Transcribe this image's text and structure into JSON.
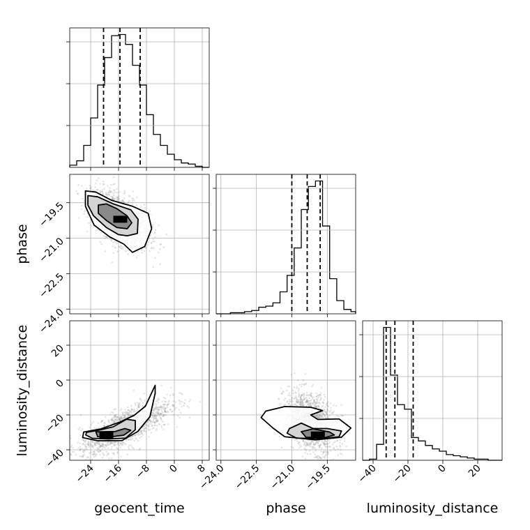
{
  "chart_data": {
    "type": "corner",
    "parameters": [
      "geocent_time",
      "phase",
      "luminosity_distance"
    ],
    "axis_labels": {
      "x": [
        "geocent_time",
        "phase",
        "luminosity_distance"
      ],
      "y": [
        "phase",
        "luminosity_distance"
      ]
    },
    "ranges": {
      "geocent_time": [
        -30,
        10
      ],
      "phase": [
        -24.2,
        -18.3
      ],
      "luminosity_distance": [
        -46,
        34
      ]
    },
    "ticks": {
      "geocent_time": [
        -24,
        -16,
        -8,
        0,
        8
      ],
      "phase": [
        -24.0,
        -22.5,
        -21.0,
        -19.5
      ],
      "luminosity_distance": [
        -40,
        -20,
        0,
        20
      ]
    },
    "tick_labels": {
      "geocent_time": [
        "−24",
        "−16",
        "−8",
        "0",
        "8"
      ],
      "phase": [
        "−24.0",
        "−22.5",
        "−21.0",
        "−19.5"
      ],
      "luminosity_distance": [
        "−40",
        "−20",
        "0",
        "20"
      ]
    },
    "quantiles": {
      "geocent_time": [
        -20.3,
        -15.6,
        -9.8
      ],
      "phase": [
        -21.0,
        -20.35,
        -19.8
      ],
      "luminosity_distance": [
        -32.5,
        -27.5,
        -17.0
      ]
    },
    "histograms": {
      "geocent_time": {
        "edges": [
          -30,
          -28,
          -26,
          -24,
          -22,
          -20,
          -18,
          -16,
          -14,
          -12,
          -10,
          -8,
          -6,
          -4,
          -2,
          0,
          2,
          4,
          6,
          8,
          10
        ],
        "counts": [
          2,
          6,
          20,
          45,
          75,
          100,
          120,
          121,
          112,
          93,
          75,
          48,
          30,
          20,
          12,
          7,
          4,
          3,
          1,
          0
        ]
      },
      "phase": {
        "edges": [
          -24.2,
          -23.9,
          -23.6,
          -23.3,
          -23.0,
          -22.7,
          -22.4,
          -22.1,
          -21.8,
          -21.5,
          -21.2,
          -20.9,
          -20.6,
          -20.3,
          -20.0,
          -19.7,
          -19.4,
          -19.1,
          -18.8,
          -18.5,
          -18.3
        ],
        "counts": [
          0,
          0,
          1,
          1,
          2,
          3,
          6,
          7,
          10,
          20,
          35,
          60,
          95,
          116,
          121,
          80,
          32,
          12,
          4,
          2
        ]
      },
      "luminosity_distance": {
        "edges": [
          -46,
          -42,
          -38,
          -34,
          -30,
          -26,
          -22,
          -18,
          -14,
          -10,
          -6,
          -2,
          2,
          6,
          10,
          14,
          18,
          22,
          26,
          30,
          34
        ],
        "counts": [
          0,
          1,
          14,
          117,
          75,
          49,
          45,
          20,
          17,
          13,
          10,
          8,
          5,
          4,
          3,
          2,
          1,
          1,
          0,
          0
        ]
      }
    },
    "panels_2d": [
      {
        "x": "geocent_time",
        "y": "phase",
        "center": [
          -15.5,
          -20.2
        ],
        "sd": [
          4.2,
          0.6
        ],
        "rho": -0.55,
        "mode": [
          -15.5,
          -20.2
        ],
        "contours": [
          [
            [
              -21.8,
              -19.6
            ],
            [
              -19.5,
              -19.55
            ],
            [
              -16.5,
              -19.75
            ],
            [
              -13.6,
              -20.05
            ],
            [
              -12.2,
              -20.35
            ],
            [
              -13.5,
              -20.6
            ],
            [
              -16.5,
              -20.55
            ],
            [
              -19.5,
              -20.25
            ],
            [
              -21.8,
              -19.95
            ]
          ],
          [
            [
              -24.8,
              -19.2
            ],
            [
              -22.0,
              -19.25
            ],
            [
              -17.5,
              -19.55
            ],
            [
              -12.5,
              -19.8
            ],
            [
              -10.4,
              -20.2
            ],
            [
              -10.6,
              -20.8
            ],
            [
              -13.5,
              -20.9
            ],
            [
              -16.0,
              -20.85
            ],
            [
              -19.5,
              -20.55
            ],
            [
              -23.2,
              -20.05
            ],
            [
              -24.8,
              -19.6
            ]
          ],
          [
            [
              -25.5,
              -19.0
            ],
            [
              -22.5,
              -19.05
            ],
            [
              -18.0,
              -19.4
            ],
            [
              -12.0,
              -19.65
            ],
            [
              -7.5,
              -19.95
            ],
            [
              -6.5,
              -20.6
            ],
            [
              -8.5,
              -21.35
            ],
            [
              -12.0,
              -21.6
            ],
            [
              -14.5,
              -21.25
            ],
            [
              -18.5,
              -20.95
            ],
            [
              -23.0,
              -20.45
            ],
            [
              -25.5,
              -19.65
            ]
          ]
        ]
      },
      {
        "x": "geocent_time",
        "y": "luminosity_distance",
        "center": [
          -14.0,
          -27.0
        ],
        "sd": [
          6.5,
          8.0
        ],
        "rho": 0.75,
        "mode": [
          -19.5,
          -31.5
        ],
        "contours": [
          [
            [
              -22.5,
              -29.7
            ],
            [
              -17.0,
              -29.5
            ],
            [
              -14.2,
              -27.8
            ],
            [
              -12.5,
              -28.8
            ],
            [
              -14.5,
              -31.6
            ],
            [
              -18.5,
              -32.6
            ],
            [
              -22.0,
              -32.5
            ]
          ],
          [
            [
              -25.2,
              -30.0
            ],
            [
              -21.5,
              -28.7
            ],
            [
              -17.5,
              -26.8
            ],
            [
              -13.7,
              -22.5
            ],
            [
              -11.2,
              -23.2
            ],
            [
              -11.2,
              -28.5
            ],
            [
              -14.0,
              -33.3
            ],
            [
              -19.0,
              -33.8
            ],
            [
              -23.5,
              -33.4
            ],
            [
              -25.4,
              -31.5
            ]
          ],
          [
            [
              -26.0,
              -29.8
            ],
            [
              -21.0,
              -28.0
            ],
            [
              -15.5,
              -24.0
            ],
            [
              -11.5,
              -20.2
            ],
            [
              -8.3,
              -15.0
            ],
            [
              -5.5,
              -3.0
            ],
            [
              -5.5,
              -7.5
            ],
            [
              -7.0,
              -21.0
            ],
            [
              -10.5,
              -29.5
            ],
            [
              -15.0,
              -34.7
            ],
            [
              -22.0,
              -34.8
            ],
            [
              -26.3,
              -33.0
            ]
          ]
        ]
      },
      {
        "x": "phase",
        "y": "luminosity_distance",
        "center": [
          -20.2,
          -24.0
        ],
        "sd": [
          0.55,
          8.5
        ],
        "rho": -0.35,
        "mode": [
          -19.9,
          -31.5
        ],
        "contours": [
          [
            [
              -20.6,
              -29.6
            ],
            [
              -20.1,
              -28.0
            ],
            [
              -19.4,
              -29.8
            ],
            [
              -19.2,
              -31.5
            ],
            [
              -19.6,
              -33.0
            ],
            [
              -20.4,
              -32.8
            ]
          ],
          [
            [
              -21.1,
              -27.8
            ],
            [
              -20.6,
              -24.7
            ],
            [
              -20.1,
              -27.8
            ],
            [
              -19.5,
              -27.8
            ],
            [
              -18.9,
              -29.2
            ],
            [
              -19.0,
              -32.5
            ],
            [
              -19.7,
              -33.6
            ],
            [
              -20.8,
              -33.3
            ],
            [
              -21.2,
              -30.5
            ]
          ],
          [
            [
              -22.1,
              -17.8
            ],
            [
              -21.3,
              -15.2
            ],
            [
              -20.2,
              -15.6
            ],
            [
              -19.7,
              -17.5
            ],
            [
              -20.2,
              -20.0
            ],
            [
              -19.9,
              -22.6
            ],
            [
              -19.0,
              -22.3
            ],
            [
              -18.5,
              -27.5
            ],
            [
              -18.9,
              -32.8
            ],
            [
              -20.0,
              -34.3
            ],
            [
              -21.3,
              -32.5
            ],
            [
              -21.8,
              -27.5
            ],
            [
              -22.3,
              -21.5
            ]
          ]
        ]
      }
    ]
  }
}
